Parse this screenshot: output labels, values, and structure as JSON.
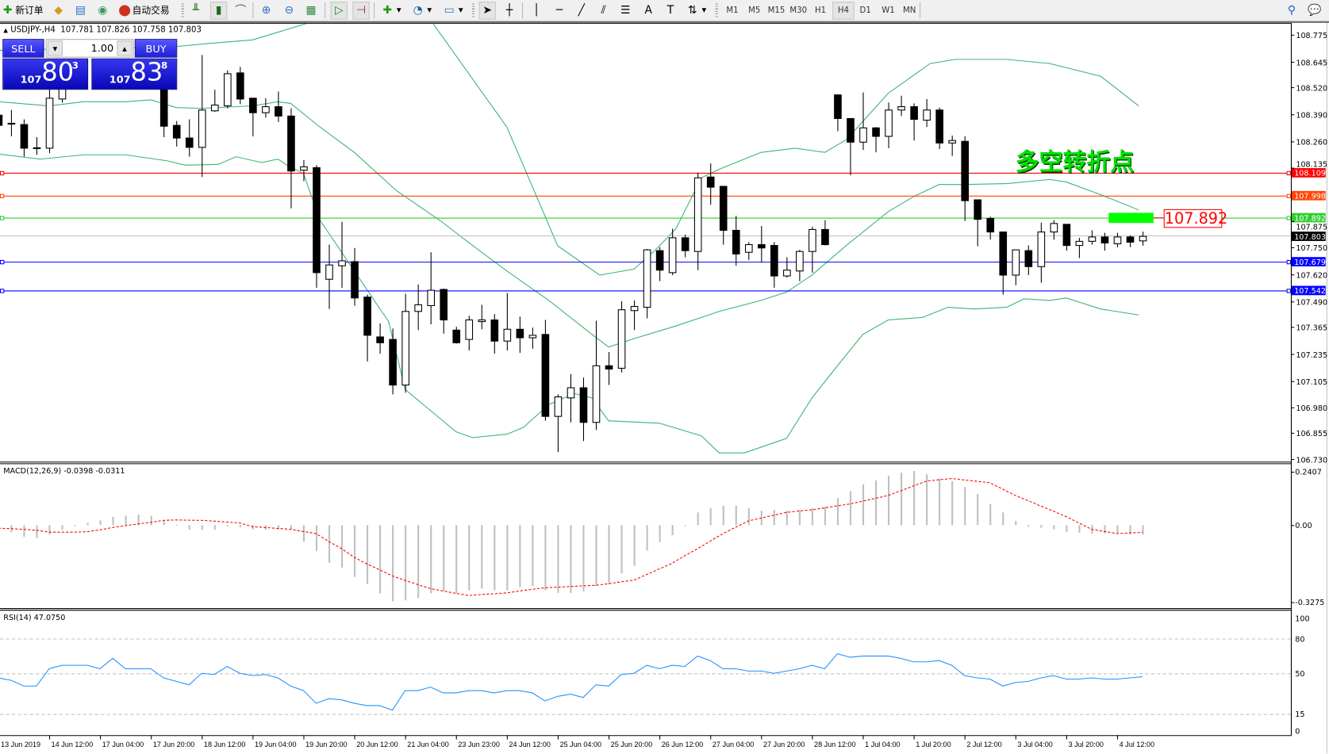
{
  "toolbar": {
    "new_order": "新订单",
    "auto_trading": "自动交易",
    "timeframes": [
      "M1",
      "M5",
      "M15",
      "M30",
      "H1",
      "H4",
      "D1",
      "W1",
      "MN"
    ],
    "active_timeframe": "H4",
    "icons": [
      "new-order-icon",
      "market-watch-icon",
      "navigator-icon",
      "signals-icon",
      "auto-trading-icon",
      "bar-chart-icon",
      "candlestick-icon",
      "line-chart-icon",
      "zoom-in-icon",
      "zoom-out-icon",
      "tile-windows-icon",
      "auto-scroll-icon",
      "chart-shift-icon",
      "indicators-icon",
      "periods-icon",
      "templates-icon",
      "cursor-icon",
      "crosshair-icon",
      "vertical-line-icon",
      "horizontal-line-icon",
      "trendline-icon",
      "equidistant-channel-icon",
      "fibonacci-icon",
      "text-icon",
      "text-label-icon",
      "arrows-icon",
      "search-icon",
      "chat-icon"
    ]
  },
  "header": {
    "arrow": "▲",
    "symbol": "USDJPY-,H4",
    "open": "107.781",
    "high": "107.826",
    "low": "107.758",
    "close": "107.803"
  },
  "trade_panel": {
    "sell_label": "SELL",
    "buy_label": "BUY",
    "lot": "1.00",
    "lot_down": "▼",
    "lot_up": "▲",
    "sell": {
      "small": "107",
      "big": "80",
      "sup": "3"
    },
    "buy": {
      "small": "107",
      "big": "83",
      "sup": "8"
    }
  },
  "annotation": {
    "text": "多空转折点",
    "color": "#00e000"
  },
  "price_label": {
    "text": "107.892",
    "color": "#ff0000"
  },
  "price_axis": {
    "ticks": [
      "108.775",
      "108.645",
      "108.520",
      "108.390",
      "108.260",
      "108.135",
      "107.875",
      "107.750",
      "107.620",
      "107.490",
      "107.365",
      "107.235",
      "107.105",
      "106.980",
      "106.855",
      "106.730"
    ]
  },
  "hlines": [
    {
      "price": "108.109",
      "color": "#ff0000"
    },
    {
      "price": "107.998",
      "color": "#ff4500"
    },
    {
      "price": "107.892",
      "color": "#32cd32"
    },
    {
      "price": "107.679",
      "color": "#0000ff"
    },
    {
      "price": "107.542",
      "color": "#0000ff"
    }
  ],
  "bid": {
    "price": "107.803",
    "color": "#000000",
    "line_color": "#c0c0c0"
  },
  "candles": [
    [
      108.387,
      108.412,
      108.289,
      108.338
    ],
    [
      108.348,
      108.412,
      108.285,
      108.344
    ],
    [
      108.342,
      108.367,
      108.187,
      108.228
    ],
    [
      108.23,
      108.281,
      108.196,
      108.226
    ],
    [
      108.228,
      108.514,
      108.204,
      108.469
    ],
    [
      108.465,
      108.554,
      108.448,
      108.534
    ],
    null,
    null,
    null,
    null,
    null,
    null,
    null,
    [
      108.554,
      108.575,
      108.281,
      108.334
    ],
    [
      108.338,
      108.359,
      108.236,
      108.277
    ],
    [
      108.277,
      108.367,
      108.187,
      108.232
    ],
    [
      108.232,
      108.677,
      108.089,
      108.412
    ],
    [
      108.408,
      108.51,
      108.403,
      108.436
    ],
    [
      108.432,
      108.603,
      108.42,
      108.587
    ],
    [
      108.591,
      108.62,
      108.44,
      108.465
    ],
    [
      108.469,
      108.469,
      108.285,
      108.399
    ],
    [
      108.399,
      108.469,
      108.375,
      108.428
    ],
    [
      108.428,
      108.501,
      108.354,
      108.383
    ],
    [
      108.383,
      108.42,
      107.938,
      108.118
    ],
    [
      108.122,
      108.171,
      108.069,
      108.138
    ],
    [
      108.134,
      108.146,
      107.555,
      107.628
    ],
    [
      107.596,
      107.763,
      107.453,
      107.665
    ],
    [
      107.661,
      107.873,
      107.555,
      107.685
    ],
    [
      107.681,
      107.747,
      107.469,
      107.506
    ],
    [
      107.51,
      107.522,
      107.2,
      107.326
    ],
    [
      107.318,
      107.383,
      107.237,
      107.29
    ],
    [
      107.306,
      107.359,
      107.041,
      107.086
    ],
    [
      107.086,
      107.526,
      107.049,
      107.441
    ],
    [
      107.441,
      107.571,
      107.351,
      107.473
    ],
    [
      107.469,
      107.726,
      107.379,
      107.543
    ],
    [
      107.547,
      107.551,
      107.334,
      107.4
    ],
    [
      107.351,
      107.367,
      107.286,
      107.29
    ],
    [
      107.306,
      107.42,
      107.253,
      107.4
    ],
    [
      107.392,
      107.473,
      107.355,
      107.4
    ],
    [
      107.4,
      107.428,
      107.237,
      107.298
    ],
    [
      107.298,
      107.53,
      107.253,
      107.355
    ],
    [
      107.355,
      107.416,
      107.241,
      107.314
    ],
    [
      107.314,
      107.363,
      107.261,
      107.326
    ],
    [
      107.33,
      107.4,
      106.914,
      106.935
    ],
    [
      106.935,
      107.041,
      106.763,
      107.029
    ],
    [
      107.024,
      107.139,
      106.906,
      107.073
    ],
    [
      107.073,
      107.122,
      106.816,
      106.906
    ],
    [
      106.906,
      107.396,
      106.869,
      107.179
    ],
    [
      107.179,
      107.245,
      107.086,
      107.163
    ],
    [
      107.167,
      107.49,
      107.147,
      107.449
    ],
    [
      107.445,
      107.494,
      107.351,
      107.465
    ],
    [
      107.461,
      107.742,
      107.408,
      107.738
    ],
    [
      107.734,
      107.751,
      107.587,
      107.64
    ],
    [
      107.628,
      107.84,
      107.616,
      107.796
    ],
    [
      107.796,
      107.812,
      107.702,
      107.734
    ],
    [
      107.73,
      108.11,
      107.64,
      108.085
    ],
    [
      108.089,
      108.155,
      107.955,
      108.04
    ],
    [
      108.044,
      108.044,
      107.763,
      107.832
    ],
    [
      107.832,
      107.902,
      107.661,
      107.718
    ],
    [
      107.726,
      107.775,
      107.689,
      107.763
    ],
    [
      107.763,
      107.853,
      107.677,
      107.747
    ],
    [
      107.759,
      107.775,
      107.555,
      107.612
    ],
    [
      107.612,
      107.702,
      107.604,
      107.64
    ],
    [
      107.636,
      107.738,
      107.587,
      107.73
    ],
    [
      107.73,
      107.849,
      107.628,
      107.836
    ],
    [
      107.836,
      107.881,
      107.759,
      107.763
    ],
    [
      108.485,
      108.485,
      108.31,
      108.371
    ],
    [
      108.371,
      108.371,
      108.097,
      108.257
    ],
    [
      108.257,
      108.497,
      108.22,
      108.326
    ],
    [
      108.326,
      108.33,
      108.208,
      108.285
    ],
    [
      108.285,
      108.448,
      108.228,
      108.412
    ],
    [
      108.412,
      108.481,
      108.383,
      108.428
    ],
    [
      108.428,
      108.444,
      108.265,
      108.367
    ],
    [
      108.363,
      108.465,
      108.33,
      108.412
    ],
    [
      108.412,
      108.424,
      108.224,
      108.253
    ],
    [
      108.253,
      108.289,
      108.191,
      108.265
    ],
    [
      108.261,
      108.285,
      107.877,
      107.975
    ],
    [
      107.979,
      107.979,
      107.755,
      107.885
    ],
    [
      107.889,
      107.898,
      107.787,
      107.824
    ],
    [
      107.824,
      107.824,
      107.522,
      107.616
    ],
    [
      107.616,
      107.738,
      107.567,
      107.738
    ],
    [
      107.734,
      107.759,
      107.616,
      107.657
    ],
    [
      107.657,
      107.869,
      107.579,
      107.824
    ],
    [
      107.824,
      107.881,
      107.787,
      107.865
    ],
    [
      107.861,
      107.861,
      107.734,
      107.759
    ],
    [
      107.759,
      107.796,
      107.698,
      107.779
    ],
    [
      107.779,
      107.832,
      107.763,
      107.8
    ],
    [
      107.8,
      107.82,
      107.734,
      107.771
    ],
    [
      107.767,
      107.82,
      107.751,
      107.8
    ],
    [
      107.8,
      107.808,
      107.751,
      107.775
    ],
    [
      107.781,
      107.826,
      107.758,
      107.803
    ]
  ],
  "bands": {
    "color": "#3cb371",
    "upper": [
      [
        0,
        108.7
      ],
      [
        14,
        108.718
      ],
      [
        16,
        108.73
      ],
      [
        20,
        108.75
      ],
      [
        24.3,
        108.83
      ],
      [
        25,
        108.9
      ],
      [
        33.5,
        108.9
      ],
      [
        34.3,
        108.82
      ],
      [
        40,
        108.33
      ],
      [
        44,
        107.757
      ],
      [
        47.3,
        107.616
      ],
      [
        50,
        107.645
      ],
      [
        51.7,
        107.738
      ],
      [
        53.3,
        107.84
      ],
      [
        55.3,
        108.085
      ],
      [
        56.7,
        108.126
      ],
      [
        60,
        108.208
      ],
      [
        62.7,
        108.228
      ],
      [
        65,
        108.208
      ],
      [
        66.7,
        108.269
      ],
      [
        70,
        108.493
      ],
      [
        73.3,
        108.636
      ],
      [
        75.3,
        108.656
      ],
      [
        79.3,
        108.656
      ],
      [
        82.7,
        108.636
      ],
      [
        86.7,
        108.575
      ],
      [
        89.7,
        108.432
      ]
    ],
    "middle": [
      [
        0,
        108.452
      ],
      [
        4,
        108.432
      ],
      [
        6.7,
        108.452
      ],
      [
        10,
        108.452
      ],
      [
        12,
        108.461
      ],
      [
        14,
        108.424
      ],
      [
        16,
        108.42
      ],
      [
        20,
        108.432
      ],
      [
        22,
        108.452
      ],
      [
        23,
        108.444
      ],
      [
        25.3,
        108.33
      ],
      [
        28,
        108.208
      ],
      [
        31.3,
        108.024
      ],
      [
        34.7,
        107.881
      ],
      [
        37.3,
        107.759
      ],
      [
        40,
        107.636
      ],
      [
        43.3,
        107.494
      ],
      [
        46.7,
        107.33
      ],
      [
        48,
        107.269
      ],
      [
        50,
        107.31
      ],
      [
        53.3,
        107.371
      ],
      [
        56.7,
        107.441
      ],
      [
        60,
        107.494
      ],
      [
        62,
        107.534
      ],
      [
        64,
        107.616
      ],
      [
        66.7,
        107.759
      ],
      [
        70,
        107.922
      ],
      [
        72,
        107.995
      ],
      [
        74,
        108.053
      ],
      [
        76,
        108.053
      ],
      [
        79.3,
        108.057
      ],
      [
        82.7,
        108.077
      ],
      [
        84,
        108.065
      ],
      [
        86.7,
        108.004
      ],
      [
        89.7,
        107.93
      ]
    ],
    "lower": [
      [
        0,
        108.2
      ],
      [
        3.3,
        108.175
      ],
      [
        6.7,
        108.196
      ],
      [
        10,
        108.196
      ],
      [
        13.3,
        108.167
      ],
      [
        14.7,
        108.146
      ],
      [
        17.3,
        108.15
      ],
      [
        18.7,
        108.187
      ],
      [
        20.7,
        108.159
      ],
      [
        22,
        108.175
      ],
      [
        22.7,
        108.146
      ],
      [
        24,
        108.106
      ],
      [
        25.3,
        107.881
      ],
      [
        28,
        107.636
      ],
      [
        30.7,
        107.392
      ],
      [
        32,
        107.065
      ],
      [
        34,
        106.963
      ],
      [
        36,
        106.861
      ],
      [
        37.3,
        106.833
      ],
      [
        40,
        106.849
      ],
      [
        41.3,
        106.882
      ],
      [
        43.3,
        106.992
      ],
      [
        45.3,
        107.045
      ],
      [
        46.7,
        107.024
      ],
      [
        48,
        106.914
      ],
      [
        52,
        106.902
      ],
      [
        55.3,
        106.841
      ],
      [
        56.7,
        106.759
      ],
      [
        58.7,
        106.759
      ],
      [
        62,
        106.829
      ],
      [
        64,
        107.024
      ],
      [
        66,
        107.179
      ],
      [
        68,
        107.33
      ],
      [
        70,
        107.4
      ],
      [
        72.7,
        107.412
      ],
      [
        74.7,
        107.461
      ],
      [
        76.7,
        107.453
      ],
      [
        79.3,
        107.461
      ],
      [
        80.7,
        107.502
      ],
      [
        82.7,
        107.494
      ],
      [
        84,
        107.506
      ],
      [
        86.7,
        107.453
      ],
      [
        89.7,
        107.424
      ]
    ]
  },
  "macd": {
    "label": "MACD(12,26,9) -0.0398 -0.0311",
    "axis": [
      {
        "value": 0.2407,
        "text": "0.2407"
      },
      {
        "value": 0,
        "text": "0.00"
      },
      {
        "value": -0.3275,
        "text": "-0.3275"
      }
    ],
    "histogram_color": "#c0c0c0",
    "signal_color": "#ff0000",
    "histogram": [
      -0.01,
      -0.03,
      -0.05,
      -0.055,
      -0.04,
      -0.02,
      -0.005,
      0.01,
      0.02,
      0.035,
      0.04,
      0.045,
      0.04,
      0.02,
      0.002,
      -0.02,
      -0.02,
      -0.02,
      -0.005,
      -0.01,
      -0.018,
      -0.02,
      -0.02,
      -0.02,
      -0.07,
      -0.11,
      -0.16,
      -0.18,
      -0.22,
      -0.25,
      -0.29,
      -0.324,
      -0.32,
      -0.31,
      -0.29,
      -0.28,
      -0.29,
      -0.277,
      -0.27,
      -0.277,
      -0.277,
      -0.263,
      -0.259,
      -0.277,
      -0.288,
      -0.288,
      -0.281,
      -0.259,
      -0.252,
      -0.205,
      -0.173,
      -0.108,
      -0.072,
      -0.043,
      0.0,
      0.054,
      0.072,
      0.083,
      0.083,
      0.072,
      0.061,
      0.065,
      0.061,
      0.065,
      0.072,
      0.079,
      0.115,
      0.144,
      0.173,
      0.19,
      0.21,
      0.223,
      0.23,
      0.216,
      0.198,
      0.187,
      0.162,
      0.133,
      0.09,
      0.054,
      0.018,
      -0.007,
      -0.011,
      -0.018,
      -0.029,
      -0.032,
      -0.036,
      -0.036,
      -0.036,
      -0.04,
      -0.0398
    ],
    "signal": [
      -0.013,
      -0.015,
      -0.018,
      -0.022,
      -0.03,
      -0.03,
      -0.03,
      -0.028,
      -0.02,
      -0.01,
      -0.002,
      0.005,
      0.012,
      0.02,
      0.022,
      0.021,
      0.02,
      0.017,
      0.013,
      0.009,
      -0.007,
      -0.01,
      -0.014,
      -0.018,
      -0.027,
      -0.036,
      -0.07,
      -0.1,
      -0.137,
      -0.165,
      -0.19,
      -0.216,
      -0.235,
      -0.253,
      -0.27,
      -0.28,
      -0.29,
      -0.299,
      -0.295,
      -0.292,
      -0.288,
      -0.28,
      -0.273,
      -0.266,
      -0.264,
      -0.261,
      -0.258,
      -0.256,
      -0.249,
      -0.241,
      -0.234,
      -0.21,
      -0.186,
      -0.162,
      -0.13,
      -0.1,
      -0.068,
      -0.036,
      -0.009,
      0.018,
      0.03,
      0.042,
      0.054,
      0.06,
      0.065,
      0.073,
      0.082,
      0.09,
      0.102,
      0.114,
      0.126,
      0.146,
      0.167,
      0.187,
      0.193,
      0.198,
      0.192,
      0.186,
      0.18,
      0.153,
      0.126,
      0.104,
      0.081,
      0.059,
      0.036,
      0.009,
      -0.018,
      -0.027,
      -0.036,
      -0.033,
      -0.0311
    ]
  },
  "rsi": {
    "label": "RSI(14) 47.0750",
    "color": "#1e90ff",
    "axis": [
      {
        "value": 100,
        "text": "100"
      },
      {
        "value": 80,
        "text": "80"
      },
      {
        "value": 50,
        "text": "50"
      },
      {
        "value": 15,
        "text": "15"
      },
      {
        "value": 0,
        "text": "0"
      }
    ],
    "levels": [
      80,
      50,
      15
    ],
    "values": [
      46,
      44,
      39,
      39,
      54,
      57,
      57,
      57,
      54,
      63,
      54,
      54,
      54,
      46,
      43,
      40,
      50,
      49,
      56,
      50,
      48,
      49,
      46,
      39,
      35,
      24,
      28,
      27,
      24,
      22,
      22,
      18,
      35,
      35,
      38,
      33,
      33,
      35,
      35,
      33,
      35,
      35,
      33,
      26,
      30,
      32,
      29,
      40,
      39,
      49,
      50,
      57,
      54,
      57,
      56,
      65,
      61,
      54,
      54,
      52,
      52,
      50,
      52,
      54,
      57,
      54,
      67,
      64,
      65,
      65,
      65,
      63,
      60,
      60,
      61,
      57,
      48,
      46,
      45,
      39,
      42,
      43,
      46,
      48,
      45,
      45,
      46,
      45,
      45,
      46,
      47.075
    ]
  },
  "time_axis": {
    "labels": [
      "13 Jun 2019",
      "14 Jun 12:00",
      "17 Jun 04:00",
      "17 Jun 20:00",
      "18 Jun 12:00",
      "19 Jun 04:00",
      "19 Jun 20:00",
      "20 Jun 12:00",
      "21 Jun 04:00",
      "23 Jun 23:00",
      "24 Jun 12:00",
      "25 Jun 04:00",
      "25 Jun 20:00",
      "26 Jun 12:00",
      "27 Jun 04:00",
      "27 Jun 20:00",
      "28 Jun 12:00",
      "1 Jul 04:00",
      "1 Jul 20:00",
      "2 Jul 12:00",
      "3 Jul 04:00",
      "3 Jul 20:00",
      "4 Jul 12:00"
    ]
  }
}
